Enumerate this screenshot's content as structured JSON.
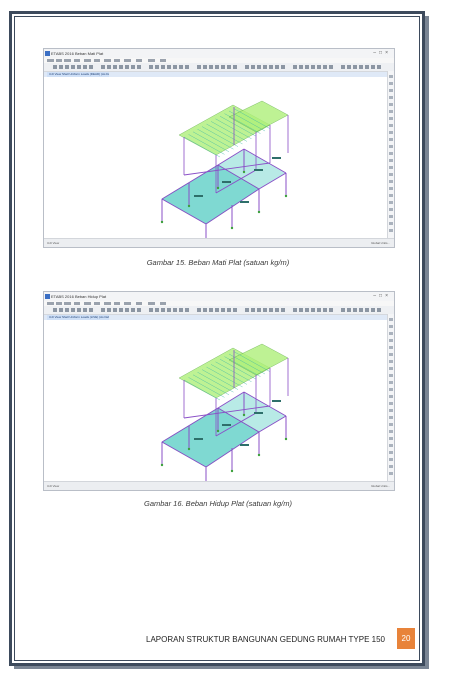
{
  "figures": [
    {
      "window_title": "ETABS 2016 Beban Mati Plat",
      "tab_label": "3-D View  Shell Uniform Loads (DEAD) (As Defined)",
      "status_left": "3-D View",
      "status_right": "Global   Units...",
      "caption": "Gambar 15. Beban Mati Plat (satuan kg/m)",
      "icon_names": [
        "app-icon",
        "minimize-icon",
        "maximize-icon",
        "close-icon"
      ],
      "colors": {
        "slab": "#7fd9d2",
        "roof": "#aef07a",
        "frame": "#8a4fc7"
      }
    },
    {
      "window_title": "ETABS 2016 Beban Hidup Plat",
      "tab_label": "3-D View  Shell Uniform Loads (LIVE) (As Defined)",
      "status_left": "3-D View",
      "status_right": "Global   Units...",
      "caption": "Gambar 16. Beban Hidup Plat (satuan kg/m)",
      "icon_names": [
        "app-icon",
        "minimize-icon",
        "maximize-icon",
        "close-icon"
      ],
      "colors": {
        "slab": "#7fd9d2",
        "roof": "#aef07a",
        "frame": "#8a4fc7"
      }
    }
  ],
  "footer": {
    "title": "LAPORAN STRUKTUR BANGUNAN GEDUNG RUMAH TYPE 150",
    "page_number": "20",
    "badge_color": "#e8833a"
  }
}
